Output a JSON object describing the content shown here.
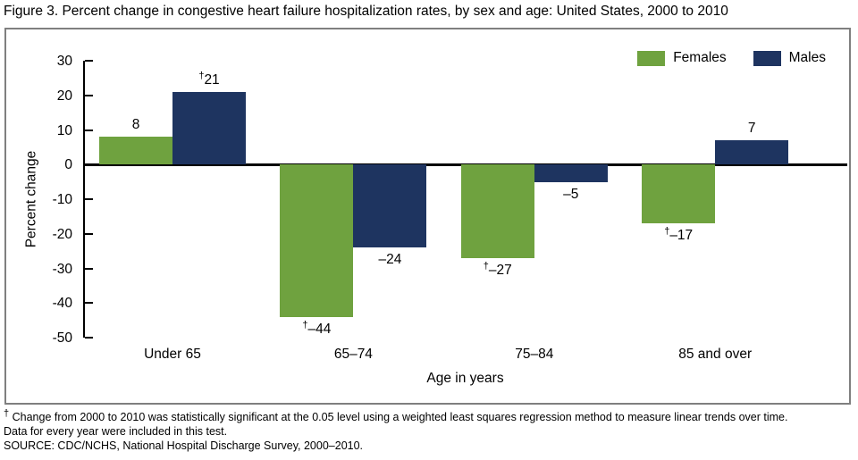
{
  "figure": {
    "title": "Figure 3. Percent change in congestive heart failure hospitalization rates, by sex and age: United States, 2000 to 2010",
    "footnote_symbol": "†",
    "footnote_line1": "Change from 2000 to 2010 was statistically significant at the 0.05 level using a weighted least squares regression method to measure linear trends over time.",
    "footnote_line2": "Data for every year were included in this test.",
    "source": "SOURCE: CDC/NCHS, National Hospital Discharge Survey, 2000–2010."
  },
  "legend": {
    "items": [
      {
        "label": "Females",
        "color": "#6fa23f"
      },
      {
        "label": "Males",
        "color": "#1e3460"
      }
    ]
  },
  "chart_data": {
    "type": "bar",
    "title": "Percent change in congestive heart failure hospitalization rates, by sex and age: United States, 2000 to 2010",
    "categories": [
      "Under 65",
      "65–74",
      "75–84",
      "85 and over"
    ],
    "xlabel": "Age in years",
    "ylabel": "Percent change",
    "ylim": [
      -50,
      30
    ],
    "yticks": [
      30,
      20,
      10,
      0,
      -10,
      -20,
      -30,
      -40,
      -50
    ],
    "grid": false,
    "legend_position": "top-right",
    "series": [
      {
        "name": "Females",
        "color": "#6fa23f",
        "values": [
          8,
          -44,
          -27,
          -17
        ],
        "significant": [
          false,
          true,
          true,
          true
        ],
        "labels": [
          "8",
          "–44",
          "–27",
          "–17"
        ]
      },
      {
        "name": "Males",
        "color": "#1e3460",
        "values": [
          21,
          -24,
          -5,
          7
        ],
        "significant": [
          true,
          false,
          false,
          false
        ],
        "labels": [
          "21",
          "–24",
          "–5",
          "7"
        ]
      }
    ]
  }
}
